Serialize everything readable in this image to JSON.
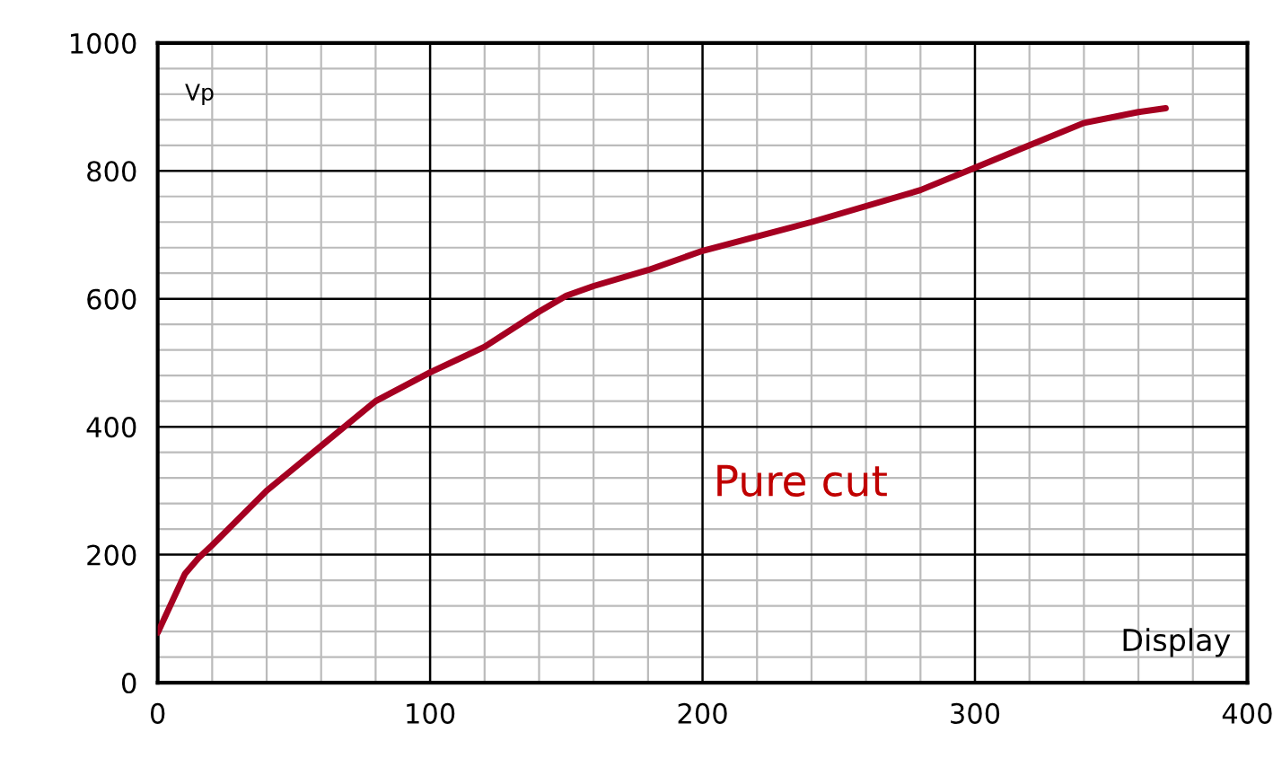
{
  "chart_data": {
    "type": "line",
    "xlabel": "Display",
    "ylabel": "Vp",
    "annotations": [
      "Pure cut"
    ],
    "x": [
      0,
      10,
      15,
      20,
      40,
      60,
      80,
      100,
      120,
      140,
      150,
      160,
      180,
      200,
      240,
      280,
      300,
      320,
      340,
      360,
      370
    ],
    "series": [
      {
        "color": "#a50021",
        "values": [
          78,
          170,
          195,
          215,
          300,
          370,
          440,
          485,
          525,
          580,
          605,
          620,
          645,
          675,
          720,
          770,
          805,
          840,
          875,
          892,
          898
        ]
      }
    ],
    "xlim": [
      0,
      400
    ],
    "ylim": [
      0,
      1000
    ],
    "xticks": [
      0,
      100,
      200,
      300,
      400
    ],
    "yticks": [
      0,
      200,
      400,
      600,
      800,
      1000
    ],
    "grid": true,
    "marker": "none",
    "line_style": "solid"
  }
}
